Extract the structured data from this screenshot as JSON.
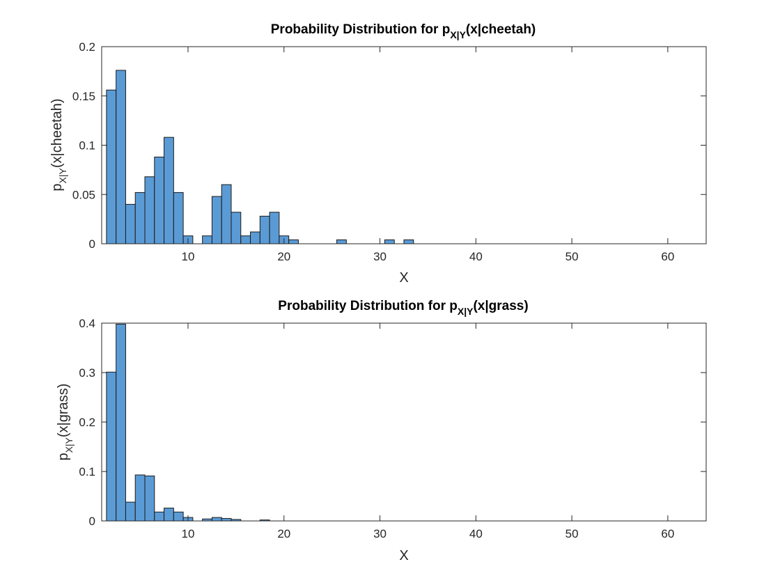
{
  "colors": {
    "bar_fill": "#5B9BD5",
    "bar_edge": "#1a1a1a",
    "axis": "#262626"
  },
  "chart_data": [
    {
      "type": "bar",
      "title": {
        "prefix": "Probability Distribution for p",
        "subscript": "X|Y",
        "suffix": "(x|cheetah)"
      },
      "xlabel": "X",
      "ylabel": {
        "prefix": "p",
        "subscript": "X|Y",
        "suffix": "(x|cheetah)"
      },
      "xlim": [
        1,
        64
      ],
      "ylim": [
        0,
        0.2
      ],
      "xticks": [
        10,
        20,
        30,
        40,
        50,
        60
      ],
      "yticks": [
        0,
        0.05,
        0.1,
        0.15,
        0.2
      ],
      "ytick_labels": [
        "0",
        "0.05",
        "0.1",
        "0.15",
        "0.2"
      ],
      "grid": false,
      "legend": "none",
      "bin_width": 1,
      "x": [
        2,
        3,
        4,
        5,
        6,
        7,
        8,
        9,
        10,
        11,
        12,
        13,
        14,
        15,
        16,
        17,
        18,
        19,
        20,
        21,
        22,
        23,
        24,
        25,
        26,
        27,
        28,
        29,
        30,
        31,
        32,
        33,
        34,
        35,
        36,
        37,
        38,
        39,
        40,
        41,
        42,
        43,
        44,
        45,
        46,
        47,
        48,
        49,
        50,
        51,
        52,
        53,
        54,
        55,
        56,
        57,
        58,
        59,
        60,
        61,
        62,
        63
      ],
      "values": [
        0.156,
        0.176,
        0.04,
        0.052,
        0.068,
        0.088,
        0.108,
        0.052,
        0.008,
        0,
        0.008,
        0.048,
        0.06,
        0.032,
        0.008,
        0.012,
        0.028,
        0.032,
        0.008,
        0.004,
        0,
        0,
        0,
        0,
        0.004,
        0,
        0,
        0,
        0,
        0.004,
        0,
        0.004,
        0,
        0,
        0,
        0,
        0,
        0,
        0,
        0,
        0,
        0,
        0,
        0,
        0,
        0,
        0,
        0,
        0,
        0,
        0,
        0,
        0,
        0,
        0,
        0,
        0,
        0,
        0,
        0,
        0,
        0
      ]
    },
    {
      "type": "bar",
      "title": {
        "prefix": "Probability Distribution for p",
        "subscript": "X|Y",
        "suffix": "(x|grass)"
      },
      "xlabel": "X",
      "ylabel": {
        "prefix": "p",
        "subscript": "X|Y",
        "suffix": "(x|grass)"
      },
      "xlim": [
        1,
        64
      ],
      "ylim": [
        0,
        0.4
      ],
      "xticks": [
        10,
        20,
        30,
        40,
        50,
        60
      ],
      "yticks": [
        0,
        0.1,
        0.2,
        0.3,
        0.4
      ],
      "ytick_labels": [
        "0",
        "0.1",
        "0.2",
        "0.3",
        "0.4"
      ],
      "grid": false,
      "legend": "none",
      "bin_width": 1,
      "x": [
        2,
        3,
        4,
        5,
        6,
        7,
        8,
        9,
        10,
        11,
        12,
        13,
        14,
        15,
        16,
        17,
        18,
        19,
        20,
        21,
        22,
        23,
        24,
        25,
        26,
        27,
        28,
        29,
        30,
        31,
        32,
        33,
        34,
        35,
        36,
        37,
        38,
        39,
        40,
        41,
        42,
        43,
        44,
        45,
        46,
        47,
        48,
        49,
        50,
        51,
        52,
        53,
        54,
        55,
        56,
        57,
        58,
        59,
        60,
        61,
        62,
        63
      ],
      "values": [
        0.301,
        0.398,
        0.038,
        0.093,
        0.091,
        0.018,
        0.026,
        0.018,
        0.007,
        0,
        0.004,
        0.007,
        0.005,
        0.003,
        0,
        0,
        0.002,
        0,
        0,
        0,
        0,
        0,
        0,
        0,
        0,
        0,
        0,
        0,
        0,
        0,
        0,
        0,
        0,
        0,
        0,
        0,
        0,
        0,
        0,
        0,
        0,
        0,
        0,
        0,
        0,
        0,
        0,
        0,
        0,
        0,
        0,
        0,
        0,
        0,
        0,
        0,
        0,
        0,
        0,
        0,
        0,
        0
      ]
    }
  ]
}
